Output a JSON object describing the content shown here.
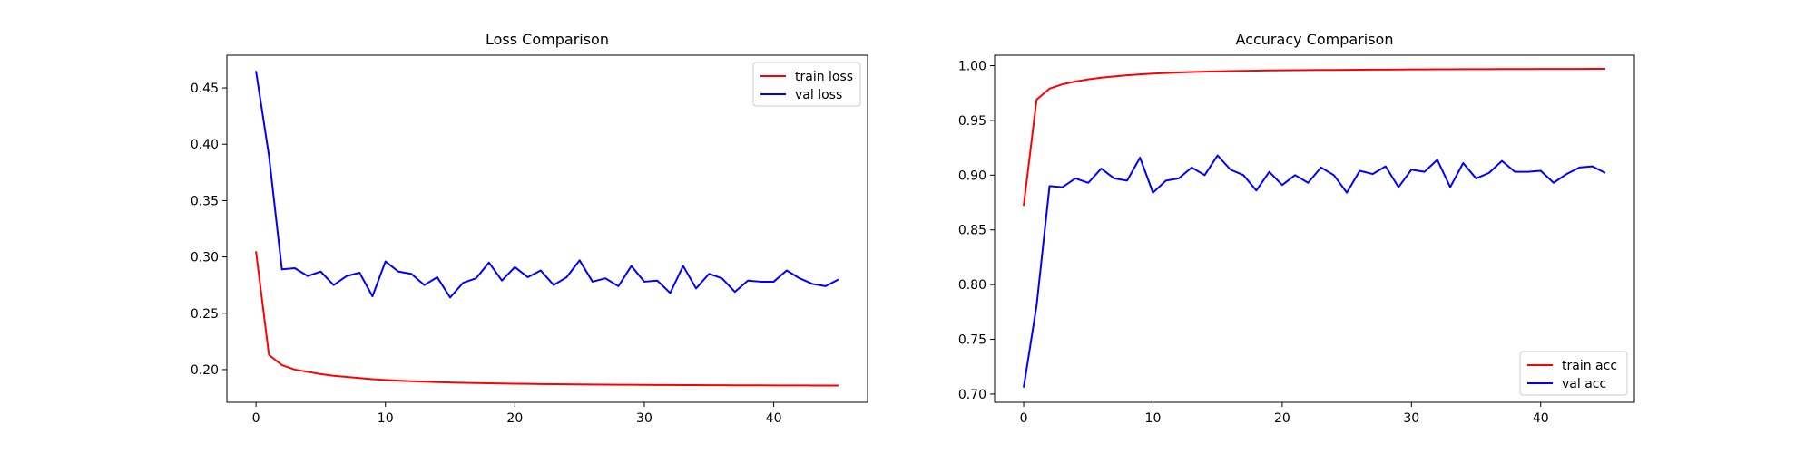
{
  "chart_data": [
    {
      "type": "line",
      "title": "Loss Comparison",
      "xlabel": "",
      "ylabel": "",
      "xlim": [
        -2.25,
        47.25
      ],
      "ylim": [
        0.171,
        0.479
      ],
      "xticks": [
        0,
        10,
        20,
        30,
        40
      ],
      "yticks": [
        0.2,
        0.25,
        0.3,
        0.35,
        0.4,
        0.45
      ],
      "ytick_labels": [
        "0.20",
        "0.25",
        "0.30",
        "0.35",
        "0.40",
        "0.45"
      ],
      "grid": false,
      "legend_position": "top-right",
      "x": [
        0,
        1,
        2,
        3,
        4,
        5,
        6,
        7,
        8,
        9,
        10,
        11,
        12,
        13,
        14,
        15,
        16,
        17,
        18,
        19,
        20,
        21,
        22,
        23,
        24,
        25,
        26,
        27,
        28,
        29,
        30,
        31,
        32,
        33,
        34,
        35,
        36,
        37,
        38,
        39,
        40,
        41,
        42,
        43,
        44,
        45
      ],
      "series": [
        {
          "name": "train loss",
          "color": "#ff0000",
          "values": [
            0.305,
            0.213,
            0.204,
            0.2,
            0.198,
            0.196,
            0.1945,
            0.1935,
            0.1925,
            0.1915,
            0.1908,
            0.1902,
            0.1897,
            0.1893,
            0.1889,
            0.1886,
            0.1883,
            0.1881,
            0.1879,
            0.1877,
            0.1875,
            0.1874,
            0.1872,
            0.1871,
            0.187,
            0.1869,
            0.1868,
            0.1867,
            0.1866,
            0.1866,
            0.1865,
            0.1864,
            0.1864,
            0.1863,
            0.1863,
            0.1862,
            0.1862,
            0.1861,
            0.1861,
            0.1861,
            0.186,
            0.186,
            0.186,
            0.1859,
            0.1859,
            0.1859
          ]
        },
        {
          "name": "val loss",
          "color": "#0000ff",
          "values": [
            0.465,
            0.39,
            0.289,
            0.29,
            0.283,
            0.287,
            0.275,
            0.283,
            0.286,
            0.265,
            0.296,
            0.287,
            0.285,
            0.275,
            0.282,
            0.264,
            0.277,
            0.281,
            0.295,
            0.279,
            0.291,
            0.282,
            0.288,
            0.275,
            0.282,
            0.297,
            0.278,
            0.281,
            0.274,
            0.292,
            0.278,
            0.279,
            0.268,
            0.292,
            0.272,
            0.285,
            0.281,
            0.269,
            0.279,
            0.278,
            0.278,
            0.288,
            0.281,
            0.276,
            0.274,
            0.28
          ]
        }
      ]
    },
    {
      "type": "line",
      "title": "Accuracy Comparison",
      "xlabel": "",
      "ylabel": "",
      "xlim": [
        -2.25,
        47.25
      ],
      "ylim": [
        0.6925,
        1.0095
      ],
      "xticks": [
        0,
        10,
        20,
        30,
        40
      ],
      "yticks": [
        0.7,
        0.75,
        0.8,
        0.85,
        0.9,
        0.95,
        1.0
      ],
      "ytick_labels": [
        "0.70",
        "0.75",
        "0.80",
        "0.85",
        "0.90",
        "0.95",
        "1.00"
      ],
      "grid": false,
      "legend_position": "bottom-right",
      "x": [
        0,
        1,
        2,
        3,
        4,
        5,
        6,
        7,
        8,
        9,
        10,
        11,
        12,
        13,
        14,
        15,
        16,
        17,
        18,
        19,
        20,
        21,
        22,
        23,
        24,
        25,
        26,
        27,
        28,
        29,
        30,
        31,
        32,
        33,
        34,
        35,
        36,
        37,
        38,
        39,
        40,
        41,
        42,
        43,
        44,
        45
      ],
      "series": [
        {
          "name": "train acc",
          "color": "#ff0000",
          "values": [
            0.872,
            0.969,
            0.979,
            0.983,
            0.9855,
            0.9875,
            0.989,
            0.9902,
            0.9912,
            0.992,
            0.9927,
            0.9933,
            0.9938,
            0.9942,
            0.9945,
            0.9948,
            0.995,
            0.9952,
            0.9954,
            0.9956,
            0.9957,
            0.9958,
            0.9959,
            0.996,
            0.9961,
            0.9962,
            0.9963,
            0.9964,
            0.9964,
            0.9965,
            0.9966,
            0.9966,
            0.9967,
            0.9967,
            0.9968,
            0.9968,
            0.9968,
            0.9969,
            0.9969,
            0.9969,
            0.997,
            0.997,
            0.997,
            0.997,
            0.9971,
            0.9971
          ]
        },
        {
          "name": "val acc",
          "color": "#0000ff",
          "values": [
            0.706,
            0.781,
            0.89,
            0.889,
            0.897,
            0.893,
            0.906,
            0.897,
            0.895,
            0.916,
            0.884,
            0.895,
            0.897,
            0.907,
            0.9,
            0.918,
            0.905,
            0.9,
            0.886,
            0.903,
            0.891,
            0.9,
            0.893,
            0.907,
            0.9,
            0.884,
            0.904,
            0.901,
            0.908,
            0.889,
            0.905,
            0.903,
            0.914,
            0.889,
            0.911,
            0.897,
            0.902,
            0.913,
            0.903,
            0.903,
            0.904,
            0.893,
            0.901,
            0.907,
            0.908,
            0.902
          ]
        }
      ]
    }
  ]
}
